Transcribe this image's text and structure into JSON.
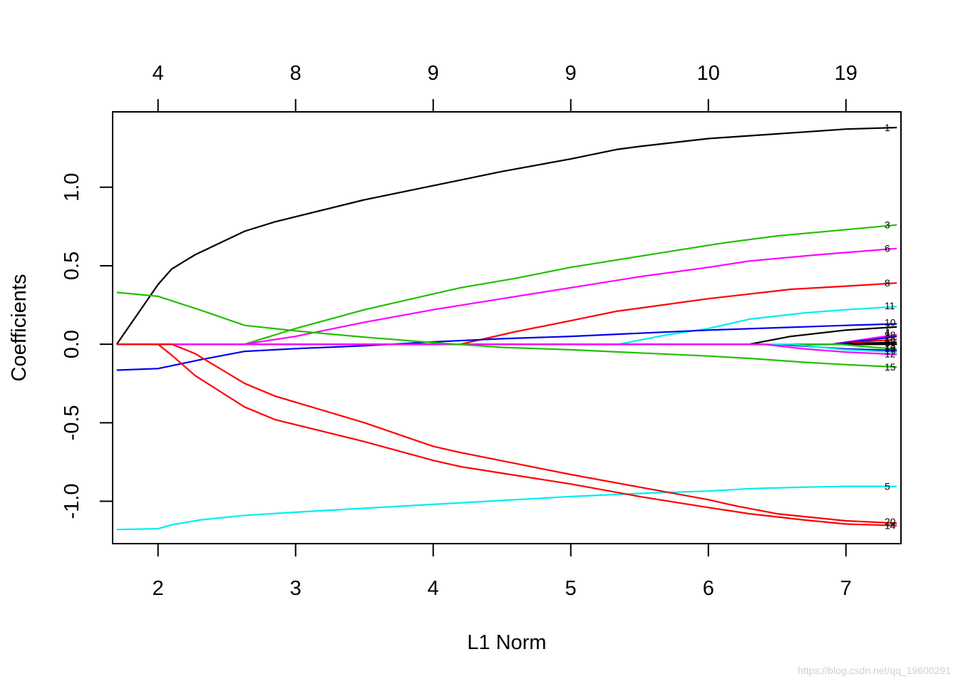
{
  "chart_data": {
    "type": "line",
    "xlabel": "L1 Norm",
    "ylabel": "Coefficients",
    "xlim": [
      1.67,
      7.4
    ],
    "ylim": [
      -1.27,
      1.48
    ],
    "x_ticks": [
      2,
      3,
      4,
      5,
      6,
      7
    ],
    "y_ticks": [
      -1.0,
      -0.5,
      0.0,
      0.5,
      1.0
    ],
    "y_tick_labels": [
      "-1.0",
      "-0.5",
      "0.0",
      "0.5",
      "1.0"
    ],
    "top_axis": {
      "ticks": [
        2,
        3,
        4,
        5,
        6,
        7
      ],
      "labels": [
        "4",
        "8",
        "9",
        "9",
        "10",
        "19"
      ]
    },
    "grid": false,
    "legend": "none",
    "series": [
      {
        "label": "1",
        "color": "#000000",
        "points": [
          [
            1.7,
            0
          ],
          [
            2.0,
            0.38
          ],
          [
            2.1,
            0.48
          ],
          [
            2.27,
            0.57
          ],
          [
            2.63,
            0.72
          ],
          [
            2.85,
            0.78
          ],
          [
            3.5,
            0.92
          ],
          [
            4.0,
            1.01
          ],
          [
            4.5,
            1.1
          ],
          [
            5.0,
            1.18
          ],
          [
            5.33,
            1.24
          ],
          [
            5.5,
            1.26
          ],
          [
            6.0,
            1.31
          ],
          [
            6.5,
            1.34
          ],
          [
            7.0,
            1.37
          ],
          [
            7.37,
            1.38
          ]
        ]
      },
      {
        "label": "3",
        "color": "#22c000",
        "points": [
          [
            1.7,
            0
          ],
          [
            2.63,
            0
          ],
          [
            3.0,
            0.1
          ],
          [
            3.5,
            0.22
          ],
          [
            4.0,
            0.32
          ],
          [
            4.2,
            0.36
          ],
          [
            4.6,
            0.42
          ],
          [
            5.0,
            0.49
          ],
          [
            5.5,
            0.56
          ],
          [
            6.0,
            0.63
          ],
          [
            6.15,
            0.65
          ],
          [
            6.5,
            0.69
          ],
          [
            7.0,
            0.73
          ],
          [
            7.37,
            0.76
          ]
        ]
      },
      {
        "label": "6",
        "color": "#ff00ff",
        "points": [
          [
            1.7,
            0
          ],
          [
            2.63,
            0
          ],
          [
            3.0,
            0.05
          ],
          [
            3.5,
            0.14
          ],
          [
            4.0,
            0.22
          ],
          [
            4.5,
            0.29
          ],
          [
            5.0,
            0.36
          ],
          [
            5.5,
            0.43
          ],
          [
            6.0,
            0.49
          ],
          [
            6.3,
            0.53
          ],
          [
            6.8,
            0.57
          ],
          [
            7.37,
            0.61
          ]
        ]
      },
      {
        "label": "8",
        "color": "#ff0000",
        "points": [
          [
            1.7,
            0
          ],
          [
            4.2,
            0
          ],
          [
            4.6,
            0.08
          ],
          [
            5.0,
            0.15
          ],
          [
            5.33,
            0.21
          ],
          [
            5.5,
            0.23
          ],
          [
            6.0,
            0.29
          ],
          [
            6.2,
            0.31
          ],
          [
            6.6,
            0.35
          ],
          [
            7.0,
            0.37
          ],
          [
            7.37,
            0.39
          ]
        ]
      },
      {
        "label": "11",
        "color": "#00eeee",
        "points": [
          [
            1.7,
            0
          ],
          [
            5.35,
            0
          ],
          [
            5.7,
            0.06
          ],
          [
            6.0,
            0.1
          ],
          [
            6.3,
            0.16
          ],
          [
            6.7,
            0.2
          ],
          [
            7.0,
            0.22
          ],
          [
            7.37,
            0.24
          ]
        ]
      },
      {
        "label": "10",
        "color": "#0000ee",
        "points": [
          [
            1.7,
            -0.165
          ],
          [
            2.0,
            -0.155
          ],
          [
            2.3,
            -0.1
          ],
          [
            2.63,
            -0.045
          ],
          [
            3.0,
            -0.028
          ],
          [
            3.5,
            -0.01
          ],
          [
            4.0,
            0.015
          ],
          [
            4.5,
            0.035
          ],
          [
            5.0,
            0.05
          ],
          [
            5.5,
            0.07
          ],
          [
            6.0,
            0.09
          ],
          [
            6.5,
            0.105
          ],
          [
            7.0,
            0.12
          ],
          [
            7.37,
            0.13
          ]
        ]
      },
      {
        "label": "7",
        "color": "#000000",
        "points": [
          [
            1.7,
            0
          ],
          [
            6.3,
            0
          ],
          [
            6.6,
            0.05
          ],
          [
            7.0,
            0.09
          ],
          [
            7.37,
            0.11
          ]
        ]
      },
      {
        "label": "4",
        "color": "#ff00ff",
        "points": [
          [
            1.7,
            0
          ],
          [
            6.9,
            0
          ],
          [
            7.2,
            0.04
          ],
          [
            7.37,
            0.06
          ]
        ]
      },
      {
        "label": "18",
        "color": "#0000ee",
        "points": [
          [
            1.7,
            0
          ],
          [
            6.9,
            0
          ],
          [
            7.2,
            0.03
          ],
          [
            7.37,
            0.05
          ]
        ]
      },
      {
        "label": "2",
        "color": "#ff0000",
        "points": [
          [
            1.7,
            0
          ],
          [
            6.95,
            0
          ],
          [
            7.2,
            0.02
          ],
          [
            7.37,
            0.03
          ]
        ]
      },
      {
        "label": "19",
        "color": "#000000",
        "points": [
          [
            1.7,
            0
          ],
          [
            6.95,
            0
          ],
          [
            7.2,
            0.008
          ],
          [
            7.37,
            0.012
          ]
        ]
      },
      {
        "label": "9",
        "color": "#000000",
        "points": [
          [
            1.7,
            0
          ],
          [
            6.95,
            0
          ],
          [
            7.37,
            0.0
          ]
        ]
      },
      {
        "label": "13",
        "color": "#22c000",
        "points": [
          [
            1.7,
            0
          ],
          [
            6.95,
            0
          ],
          [
            7.2,
            -0.02
          ],
          [
            7.37,
            -0.03
          ]
        ]
      },
      {
        "label": "16",
        "color": "#0000ee",
        "points": [
          [
            1.7,
            0
          ],
          [
            6.5,
            0
          ],
          [
            7.0,
            -0.03
          ],
          [
            7.37,
            -0.04
          ]
        ]
      },
      {
        "label": "17",
        "color": "#00eeee",
        "points": [
          [
            1.7,
            0
          ],
          [
            6.6,
            0
          ],
          [
            7.0,
            -0.035
          ],
          [
            7.37,
            -0.05
          ]
        ]
      },
      {
        "label": "12",
        "color": "#ff00ff",
        "points": [
          [
            1.7,
            0
          ],
          [
            6.4,
            0
          ],
          [
            6.7,
            -0.03
          ],
          [
            7.0,
            -0.05
          ],
          [
            7.37,
            -0.065
          ]
        ]
      },
      {
        "label": "15",
        "color": "#22c000",
        "points": [
          [
            1.7,
            0.33
          ],
          [
            2.0,
            0.305
          ],
          [
            2.3,
            0.22
          ],
          [
            2.63,
            0.12
          ],
          [
            3.0,
            0.085
          ],
          [
            3.5,
            0.045
          ],
          [
            4.0,
            0.01
          ],
          [
            4.5,
            -0.02
          ],
          [
            5.0,
            -0.035
          ],
          [
            5.5,
            -0.055
          ],
          [
            6.0,
            -0.075
          ],
          [
            6.3,
            -0.09
          ],
          [
            6.7,
            -0.115
          ],
          [
            7.0,
            -0.13
          ],
          [
            7.37,
            -0.145
          ]
        ]
      },
      {
        "label": "5",
        "color": "#00eeee",
        "points": [
          [
            1.7,
            -1.18
          ],
          [
            2.0,
            -1.175
          ],
          [
            2.1,
            -1.15
          ],
          [
            2.3,
            -1.12
          ],
          [
            2.63,
            -1.09
          ],
          [
            3.0,
            -1.07
          ],
          [
            3.5,
            -1.045
          ],
          [
            4.0,
            -1.02
          ],
          [
            4.5,
            -0.995
          ],
          [
            5.0,
            -0.97
          ],
          [
            5.5,
            -0.95
          ],
          [
            6.0,
            -0.935
          ],
          [
            6.3,
            -0.92
          ],
          [
            6.7,
            -0.91
          ],
          [
            7.0,
            -0.905
          ],
          [
            7.37,
            -0.905
          ]
        ]
      },
      {
        "label": "20",
        "color": "#ff0000",
        "points": [
          [
            1.7,
            0
          ],
          [
            2.1,
            0
          ],
          [
            2.27,
            -0.06
          ],
          [
            2.63,
            -0.25
          ],
          [
            2.85,
            -0.33
          ],
          [
            3.5,
            -0.5
          ],
          [
            4.0,
            -0.65
          ],
          [
            4.2,
            -0.69
          ],
          [
            4.6,
            -0.76
          ],
          [
            5.0,
            -0.83
          ],
          [
            5.5,
            -0.91
          ],
          [
            6.0,
            -0.99
          ],
          [
            6.2,
            -1.03
          ],
          [
            6.5,
            -1.08
          ],
          [
            7.0,
            -1.125
          ],
          [
            7.37,
            -1.14
          ]
        ]
      },
      {
        "label": "14",
        "color": "#ff0000",
        "points": [
          [
            1.7,
            0
          ],
          [
            2.0,
            0
          ],
          [
            2.1,
            -0.07
          ],
          [
            2.27,
            -0.2
          ],
          [
            2.63,
            -0.4
          ],
          [
            2.85,
            -0.48
          ],
          [
            3.5,
            -0.62
          ],
          [
            4.0,
            -0.74
          ],
          [
            4.2,
            -0.78
          ],
          [
            5.0,
            -0.89
          ],
          [
            5.5,
            -0.97
          ],
          [
            6.0,
            -1.04
          ],
          [
            6.3,
            -1.08
          ],
          [
            6.7,
            -1.12
          ],
          [
            7.0,
            -1.145
          ],
          [
            7.37,
            -1.155
          ]
        ]
      }
    ]
  },
  "end_labels": [
    {
      "text": "1",
      "y": 1.38
    },
    {
      "text": "3",
      "y": 0.76
    },
    {
      "text": "6",
      "y": 0.61
    },
    {
      "text": "8",
      "y": 0.39
    },
    {
      "text": "11",
      "y": 0.245
    },
    {
      "text": "10",
      "y": 0.14
    },
    {
      "text": "7",
      "y": 0.11
    },
    {
      "text": "4",
      "y": 0.075
    },
    {
      "text": "18",
      "y": 0.06
    },
    {
      "text": "2",
      "y": 0.04
    },
    {
      "text": "19",
      "y": 0.02
    },
    {
      "text": "9",
      "y": 0.005
    },
    {
      "text": "13",
      "y": -0.01
    },
    {
      "text": "16",
      "y": -0.025
    },
    {
      "text": "17",
      "y": -0.04
    },
    {
      "text": "12",
      "y": -0.06
    },
    {
      "text": "15",
      "y": -0.145
    },
    {
      "text": "5",
      "y": -0.905
    },
    {
      "text": "20",
      "y": -1.13
    },
    {
      "text": "14",
      "y": -1.155
    }
  ],
  "watermark": "https://blog.csdn.net/qq_19600291"
}
